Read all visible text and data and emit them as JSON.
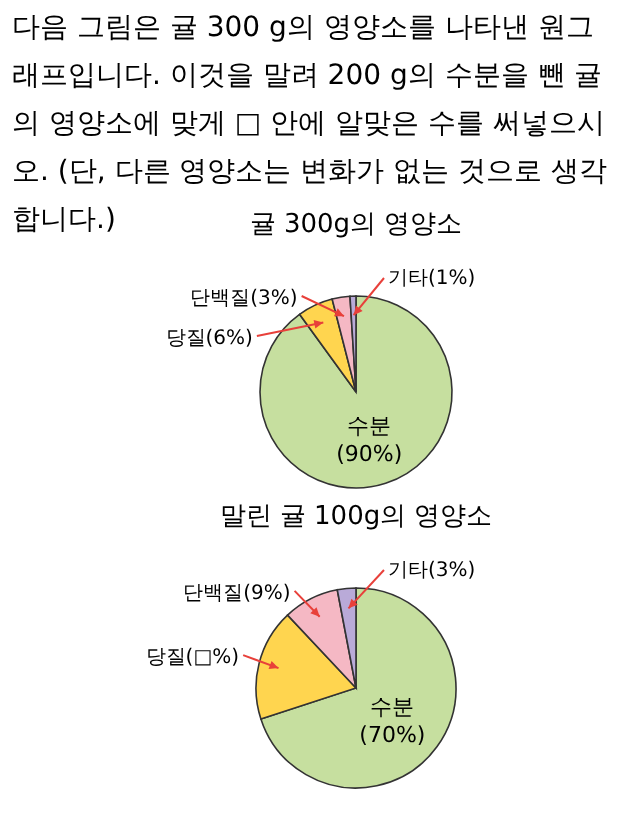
{
  "chart_data": [
    {
      "type": "pie",
      "title": "귤 300g의 영양소",
      "annotations": [
        "다음 그림은 귤 300 g의 영양소를 나타낸 원그래프입니다. 이것을 말려 200 g의 수분을 뺀 귤의 영양소에 맞게 □ 안에 알맞은 수를 써넣으시오. (단, 다른 영양소는 변화가 없는 것으로 생각합니다.)"
      ],
      "categories": [
        "수분",
        "당질",
        "단백질",
        "기타"
      ],
      "values": [
        90,
        6,
        3,
        1
      ],
      "colors": [
        "#c6df9f",
        "#ffd54f",
        "#f5b8c4",
        "#b9aad8"
      ],
      "value_labels": [
        "(90%)",
        "(6%)",
        "(3%)",
        "(1%)"
      ]
    },
    {
      "type": "pie",
      "title": "말린 귤 100g의 영양소",
      "categories": [
        "수분",
        "당질",
        "단백질",
        "기타"
      ],
      "values": [
        70,
        18,
        9,
        3
      ],
      "colors": [
        "#c6df9f",
        "#ffd54f",
        "#f5b8c4",
        "#b9aad8"
      ],
      "value_labels": [
        "(70%)",
        "(□%)",
        "(9%)",
        "(3%)"
      ]
    }
  ]
}
